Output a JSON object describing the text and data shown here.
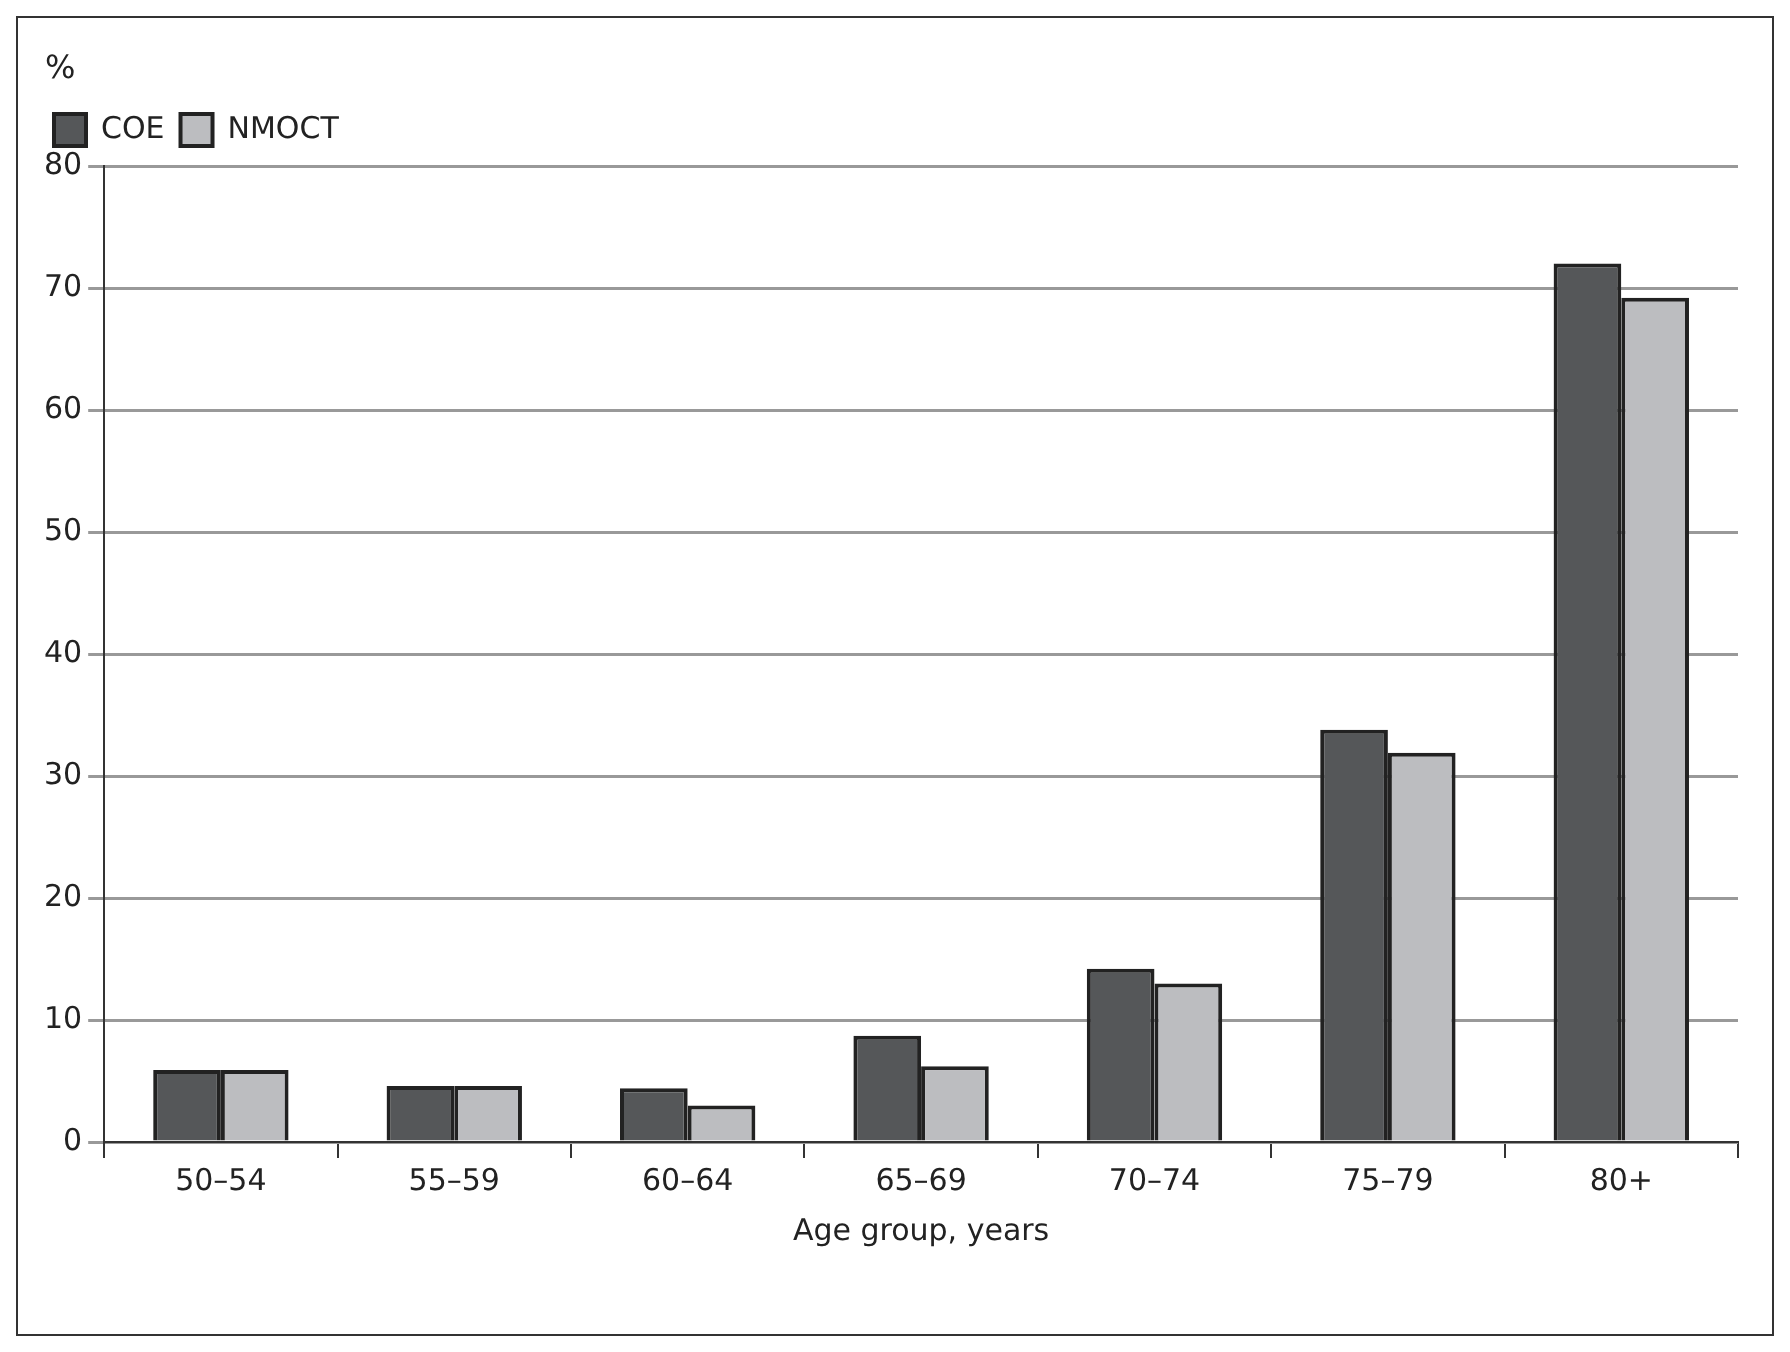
{
  "chart_data": {
    "type": "bar",
    "ylabel": "%",
    "xlabel": "Age group, years",
    "categories": [
      "50–54",
      "55–59",
      "60–64",
      "65–69",
      "70–74",
      "75–79",
      "80+"
    ],
    "series": [
      {
        "name": "COE",
        "color": "#555759",
        "values": [
          5.9,
          4.6,
          4.4,
          8.7,
          14.2,
          33.8,
          72.0
        ]
      },
      {
        "name": "NMOCT",
        "color": "#bcbdc0",
        "values": [
          5.9,
          4.6,
          3.0,
          6.2,
          13.0,
          31.9,
          69.2
        ]
      }
    ],
    "ylim": [
      0,
      80
    ],
    "yticks": [
      0,
      10,
      20,
      30,
      40,
      50,
      60,
      70,
      80
    ],
    "grid": "y",
    "legend": "top left"
  }
}
